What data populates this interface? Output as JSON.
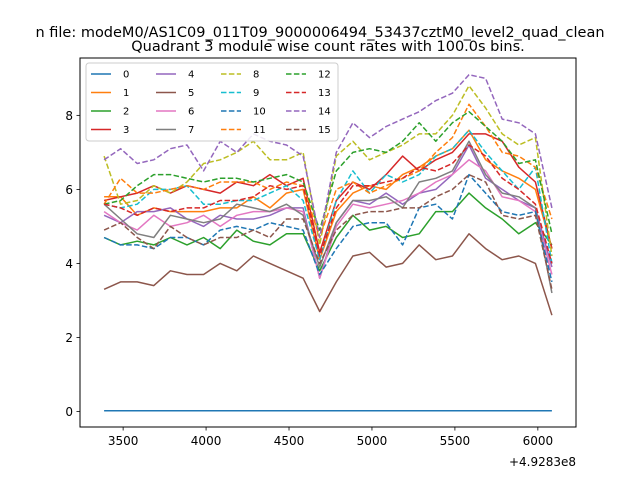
{
  "chart_data": {
    "type": "line",
    "suptitle": "n file: modeM0/AS1C09_011T09_9000006494_53437cztM0_level2_quad_clean",
    "title": "Quadrant 3 module wise count rates with 100.0s bins.",
    "xlabel": "",
    "ylabel": "",
    "x_offset_label": "+4.9283e8",
    "xlim": [
      3240,
      6230
    ],
    "ylim": [
      -0.42,
      9.55
    ],
    "x_ticks": [
      3500,
      4000,
      4500,
      5000,
      5500,
      6000
    ],
    "x_tick_labels": [
      "3500",
      "4000",
      "4500",
      "5000",
      "5500",
      "6000"
    ],
    "y_ticks": [
      0,
      2,
      4,
      6,
      8
    ],
    "y_tick_labels": [
      "0",
      "2",
      "4",
      "6",
      "8"
    ],
    "legend_position": "upper-left",
    "x": [
      3385,
      3485,
      3585,
      3685,
      3785,
      3885,
      3985,
      4085,
      4185,
      4285,
      4385,
      4485,
      4585,
      4685,
      4785,
      4885,
      4985,
      5085,
      5185,
      5285,
      5385,
      5485,
      5585,
      5685,
      5785,
      5885,
      5985,
      6085
    ],
    "series": [
      {
        "name": "0",
        "color": "#1f77b4",
        "dash": "solid",
        "values": [
          0.02,
          0.02,
          0.02,
          0.02,
          0.02,
          0.02,
          0.02,
          0.02,
          0.02,
          0.02,
          0.02,
          0.02,
          0.02,
          0.02,
          0.02,
          0.02,
          0.02,
          0.02,
          0.02,
          0.02,
          0.02,
          0.02,
          0.02,
          0.02,
          0.02,
          0.02,
          0.02,
          0.02
        ]
      },
      {
        "name": "1",
        "color": "#ff7f0e",
        "dash": "solid",
        "values": [
          5.8,
          5.8,
          5.3,
          5.5,
          5.4,
          5.4,
          5.4,
          5.5,
          5.5,
          5.8,
          5.5,
          5.9,
          6.0,
          4.1,
          5.4,
          5.9,
          6.1,
          6.0,
          6.4,
          6.6,
          6.9,
          7.1,
          7.6,
          6.8,
          6.5,
          6.3,
          6.0,
          4.4
        ]
      },
      {
        "name": "2",
        "color": "#2ca02c",
        "dash": "solid",
        "values": [
          4.7,
          4.5,
          4.6,
          4.5,
          4.7,
          4.5,
          4.7,
          4.4,
          4.9,
          4.6,
          4.5,
          4.8,
          4.8,
          3.8,
          4.7,
          5.3,
          4.9,
          5.0,
          4.7,
          4.8,
          5.4,
          5.4,
          5.9,
          5.5,
          5.2,
          4.8,
          5.1,
          4.5
        ]
      },
      {
        "name": "3",
        "color": "#d62728",
        "dash": "solid",
        "values": [
          5.7,
          5.8,
          5.9,
          6.1,
          5.9,
          6.1,
          6.0,
          5.9,
          6.2,
          6.1,
          6.4,
          6.1,
          6.3,
          4.3,
          5.7,
          6.2,
          6.0,
          6.4,
          6.9,
          6.5,
          6.8,
          7.0,
          7.5,
          7.5,
          7.3,
          6.6,
          6.2,
          4.4
        ]
      },
      {
        "name": "4",
        "color": "#9467bd",
        "dash": "solid",
        "values": [
          5.3,
          5.1,
          5.4,
          5.4,
          5.5,
          5.2,
          5.0,
          5.3,
          5.2,
          5.2,
          5.3,
          5.5,
          5.5,
          3.6,
          5.1,
          5.7,
          5.6,
          5.9,
          5.6,
          5.9,
          6.0,
          6.4,
          7.2,
          6.3,
          6.0,
          5.7,
          5.5,
          3.9
        ]
      },
      {
        "name": "5",
        "color": "#8c564b",
        "dash": "solid",
        "values": [
          3.3,
          3.5,
          3.5,
          3.4,
          3.8,
          3.7,
          3.7,
          4.0,
          3.8,
          4.2,
          4.0,
          3.8,
          3.6,
          2.7,
          3.5,
          4.2,
          4.3,
          3.9,
          4.0,
          4.5,
          4.1,
          4.2,
          4.8,
          4.4,
          4.1,
          4.2,
          4.0,
          2.6
        ]
      },
      {
        "name": "6",
        "color": "#e377c2",
        "dash": "solid",
        "values": [
          5.4,
          5.1,
          4.9,
          5.3,
          5.0,
          5.1,
          5.3,
          5.0,
          5.3,
          5.4,
          5.4,
          5.5,
          5.4,
          3.6,
          5.0,
          5.6,
          5.5,
          5.6,
          5.7,
          5.9,
          6.2,
          6.4,
          6.8,
          6.5,
          5.8,
          5.7,
          5.4,
          3.7
        ]
      },
      {
        "name": "7",
        "color": "#7f7f7f",
        "dash": "solid",
        "values": [
          5.6,
          5.2,
          4.8,
          4.7,
          5.3,
          5.2,
          5.1,
          5.2,
          5.6,
          5.5,
          5.4,
          5.6,
          5.3,
          3.9,
          5.1,
          5.7,
          5.7,
          5.8,
          5.5,
          6.2,
          6.3,
          6.5,
          7.3,
          6.4,
          5.9,
          5.8,
          5.5,
          3.2
        ]
      },
      {
        "name": "8",
        "color": "#bcbd22",
        "dash": "dashed",
        "values": [
          6.9,
          5.6,
          5.7,
          6.1,
          5.9,
          6.2,
          6.7,
          6.8,
          7.0,
          7.3,
          6.8,
          6.8,
          7.0,
          4.5,
          6.9,
          7.3,
          6.8,
          7.0,
          7.2,
          7.5,
          7.5,
          8.0,
          8.8,
          8.2,
          7.5,
          7.2,
          7.4,
          4.2
        ]
      },
      {
        "name": "9",
        "color": "#17becf",
        "dash": "dashed",
        "values": [
          5.6,
          5.5,
          5.6,
          6.0,
          6.0,
          6.1,
          5.6,
          5.6,
          5.7,
          5.7,
          5.9,
          6.1,
          5.7,
          4.1,
          5.7,
          6.5,
          5.9,
          6.4,
          6.2,
          6.4,
          6.9,
          7.1,
          7.6,
          7.0,
          6.5,
          6.0,
          6.6,
          4.0
        ]
      },
      {
        "name": "10",
        "color": "#1f77b4",
        "dash": "dashed",
        "values": [
          4.7,
          4.5,
          4.5,
          4.4,
          4.7,
          4.7,
          4.5,
          4.9,
          5.0,
          4.9,
          5.1,
          5.0,
          4.9,
          3.7,
          4.4,
          5.0,
          5.1,
          5.1,
          4.5,
          5.5,
          5.6,
          5.2,
          6.4,
          5.9,
          5.4,
          5.3,
          5.4,
          3.5
        ]
      },
      {
        "name": "11",
        "color": "#ff7f0e",
        "dash": "dashed",
        "values": [
          5.6,
          6.3,
          5.9,
          5.9,
          6.0,
          6.1,
          6.0,
          6.2,
          6.2,
          6.2,
          6.0,
          6.2,
          6.1,
          4.7,
          6.0,
          6.2,
          5.9,
          6.1,
          6.3,
          6.5,
          7.0,
          7.4,
          8.3,
          7.7,
          7.0,
          6.9,
          6.6,
          5.2
        ]
      },
      {
        "name": "12",
        "color": "#2ca02c",
        "dash": "dashed",
        "values": [
          5.6,
          5.7,
          6.1,
          6.4,
          6.4,
          6.3,
          6.2,
          6.3,
          6.3,
          6.2,
          6.3,
          6.4,
          6.2,
          4.9,
          6.5,
          7.0,
          7.1,
          7.0,
          7.3,
          7.8,
          7.3,
          7.8,
          8.1,
          7.7,
          7.3,
          6.7,
          6.8,
          4.8
        ]
      },
      {
        "name": "13",
        "color": "#d62728",
        "dash": "dashed",
        "values": [
          5.6,
          5.5,
          5.3,
          5.5,
          5.4,
          5.5,
          5.5,
          5.7,
          5.7,
          5.8,
          6.1,
          6.0,
          6.1,
          4.2,
          5.5,
          6.1,
          6.1,
          6.2,
          6.3,
          6.6,
          6.5,
          6.7,
          7.2,
          6.9,
          6.3,
          6.0,
          5.6,
          4.0
        ]
      },
      {
        "name": "14",
        "color": "#9467bd",
        "dash": "dashed",
        "values": [
          6.8,
          7.1,
          6.7,
          6.8,
          7.1,
          7.2,
          6.5,
          7.3,
          7.0,
          7.5,
          7.3,
          7.2,
          6.9,
          4.7,
          7.0,
          7.8,
          7.4,
          7.7,
          7.9,
          8.1,
          8.4,
          8.6,
          9.1,
          9.0,
          7.9,
          7.8,
          7.5,
          5.5
        ]
      },
      {
        "name": "15",
        "color": "#8c564b",
        "dash": "dashed",
        "values": [
          4.9,
          5.1,
          4.7,
          4.4,
          5.0,
          4.7,
          4.5,
          4.7,
          4.7,
          4.9,
          4.7,
          5.2,
          5.2,
          4.0,
          4.9,
          5.3,
          5.4,
          5.4,
          5.5,
          5.5,
          5.8,
          6.0,
          6.4,
          6.2,
          5.3,
          5.2,
          5.3,
          3.3
        ]
      }
    ]
  }
}
